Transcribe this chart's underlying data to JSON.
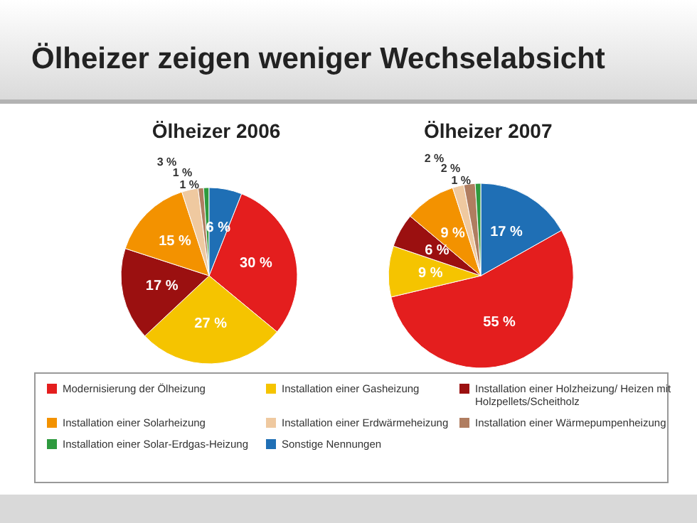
{
  "chart_data": {
    "type": "pie",
    "title": "Ölheizer zeigen weniger Wechselabsicht",
    "legend": "bottom",
    "categories": [
      "Modernisierung der Ölheizung",
      "Installation einer Gasheizung",
      "Installation einer Holzheizung/ Heizen mit Holzpellets/Scheitholz",
      "Installation einer Solarheizung",
      "Installation einer Erdwärmeheizung",
      "Installation einer Wärmepumpenheizung",
      "Installation einer Solar-Erdgas-Heizung",
      "Sonstige Nennungen"
    ],
    "colors": [
      "#e41e1e",
      "#f5c400",
      "#9b1010",
      "#f39200",
      "#efc9a0",
      "#b07d60",
      "#2e9a3e",
      "#1f6fb5"
    ],
    "series": [
      {
        "name": "Ölheizer 2006",
        "values": [
          30,
          27,
          17,
          15,
          3,
          1,
          1,
          6
        ],
        "value_labels": [
          "30 %",
          "27 %",
          "17 %",
          "15 %",
          "3 %",
          "1 %",
          "1 %",
          "6 %"
        ]
      },
      {
        "name": "Ölheizer 2007",
        "values": [
          55,
          9,
          6,
          9,
          2,
          2,
          1,
          17
        ],
        "value_labels": [
          "55 %",
          "9 %",
          "6 %",
          "9 %",
          "2 %",
          "2 %",
          "1 %",
          "17 %"
        ]
      }
    ]
  }
}
